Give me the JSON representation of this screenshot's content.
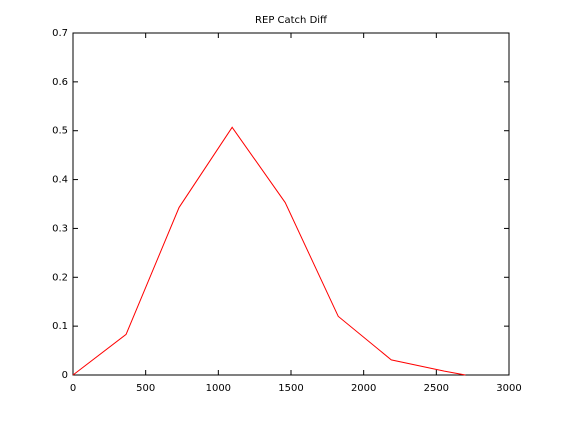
{
  "chart_data": {
    "type": "line",
    "title": "REP Catch Diff",
    "x": [
      0,
      365,
      730,
      1095,
      1460,
      1825,
      2190,
      2555,
      2700
    ],
    "series": [
      {
        "color": "#ff0000",
        "values": [
          0,
          0.083,
          0.343,
          0.507,
          0.353,
          0.12,
          0.031,
          0.008,
          0
        ]
      }
    ],
    "xlim": [
      0,
      3000
    ],
    "xticks": [
      0,
      500,
      1000,
      1500,
      2000,
      2500,
      3000
    ],
    "ylim": [
      0,
      0.7
    ],
    "yticks": [
      0,
      0.1,
      0.2,
      0.3,
      0.4,
      0.5,
      0.6,
      0.7
    ]
  }
}
